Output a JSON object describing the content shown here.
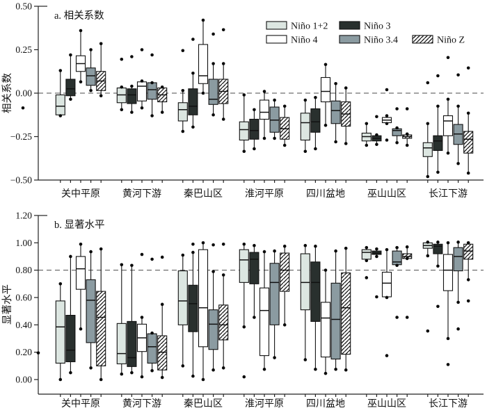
{
  "figure": {
    "legend": [
      {
        "label": "Niño 1+2",
        "style": "nino12",
        "row": 0,
        "col": 0
      },
      {
        "label": "Niño 3",
        "style": "nino3",
        "row": 0,
        "col": 1
      },
      {
        "label": "Niño 4",
        "style": "nino4",
        "row": 1,
        "col": 0
      },
      {
        "label": "Niño 3.4",
        "style": "nino34",
        "row": 1,
        "col": 1
      },
      {
        "label": "Niño Z",
        "style": "ninoZ",
        "row": 1,
        "col": 2
      }
    ],
    "colors": {
      "nino12": "#dce6e1",
      "nino3": "#29302e",
      "nino4": "#ffffff",
      "nino34": "#8b9ba1",
      "ninoZ": "hatch",
      "hatch_line": "#111111",
      "box_stroke": "#111111",
      "dashed_line": "#6e6e6e",
      "axis": "#222222"
    },
    "stray_dots": [
      {
        "panel": 0,
        "x": 33,
        "value": -0.085
      },
      {
        "panel": 1,
        "x": 55,
        "value": 0.195
      }
    ]
  },
  "chart_data": [
    {
      "type": "box",
      "id": "a",
      "title": "a. 相关系数",
      "ylabel": "相关系数",
      "ylim": [
        -0.5,
        0.5
      ],
      "grid": false,
      "legend_position": "top-right",
      "yticks": [
        {
          "v": 0.5,
          "label": "0.50"
        },
        {
          "v": 0.25,
          "label": "0.25"
        },
        {
          "v": 0.0,
          "label": "0.00"
        },
        {
          "v": -0.25,
          "label": "−0.25"
        },
        {
          "v": -0.5,
          "label": "−0.50"
        }
      ],
      "dashed_at": [
        0.0
      ],
      "categories": [
        "关中平原",
        "黄河下游",
        "秦巴山区",
        "淮河平原",
        "四川盆地",
        "巫山山区",
        "长江下游"
      ],
      "series": [
        {
          "name": "Niño 1+2",
          "style": "nino12",
          "boxes": [
            {
              "lo": -0.13,
              "q1": -0.125,
              "med": -0.075,
              "q3": -0.01,
              "hi": 0.13,
              "out": []
            },
            {
              "lo": -0.095,
              "q1": -0.055,
              "med": -0.01,
              "q3": 0.03,
              "hi": 0.035,
              "out": [
                0.195
              ]
            },
            {
              "lo": -0.22,
              "q1": -0.16,
              "med": -0.095,
              "q3": -0.055,
              "hi": 0.015,
              "out": [
                0.245
              ]
            },
            {
              "lo": -0.335,
              "q1": -0.27,
              "med": -0.21,
              "q3": -0.165,
              "hi": -0.01,
              "out": []
            },
            {
              "lo": -0.335,
              "q1": -0.27,
              "med": -0.17,
              "q3": -0.115,
              "hi": -0.04,
              "out": []
            },
            {
              "lo": -0.3,
              "q1": -0.275,
              "med": -0.25,
              "q3": -0.23,
              "hi": -0.175,
              "out": []
            },
            {
              "lo": -0.48,
              "q1": -0.365,
              "med": -0.315,
              "q3": -0.285,
              "hi": -0.175,
              "out": [
                0.06
              ]
            }
          ]
        },
        {
          "name": "Niño 3",
          "style": "nino3",
          "boxes": [
            {
              "lo": -0.035,
              "q1": -0.015,
              "med": 0.025,
              "q3": 0.08,
              "hi": 0.22,
              "out": []
            },
            {
              "lo": -0.11,
              "q1": -0.06,
              "med": -0.01,
              "q3": 0.025,
              "hi": 0.04,
              "out": [
                0.21
              ]
            },
            {
              "lo": -0.195,
              "q1": -0.125,
              "med": -0.075,
              "q3": 0.025,
              "hi": 0.115,
              "out": [
                0.31
              ]
            },
            {
              "lo": -0.32,
              "q1": -0.265,
              "med": -0.215,
              "q3": -0.15,
              "hi": -0.095,
              "out": []
            },
            {
              "lo": -0.32,
              "q1": -0.225,
              "med": -0.165,
              "q3": -0.09,
              "hi": -0.025,
              "out": []
            },
            {
              "lo": -0.295,
              "q1": -0.275,
              "med": -0.26,
              "q3": -0.245,
              "hi": -0.24,
              "out": [
                -0.135
              ]
            },
            {
              "lo": -0.455,
              "q1": -0.33,
              "med": -0.275,
              "q3": -0.245,
              "hi": -0.075,
              "out": [
                0.1
              ]
            }
          ]
        },
        {
          "name": "Niño 4",
          "style": "nino4",
          "boxes": [
            {
              "lo": 0.065,
              "q1": 0.125,
              "med": 0.17,
              "q3": 0.215,
              "hi": 0.36,
              "out": []
            },
            {
              "lo": -0.085,
              "q1": -0.045,
              "med": 0.04,
              "q3": 0.065,
              "hi": 0.07,
              "out": [
                0.25
              ]
            },
            {
              "lo": 0.0,
              "q1": 0.055,
              "med": 0.1,
              "q3": 0.28,
              "hi": 0.42,
              "out": []
            },
            {
              "lo": -0.26,
              "q1": -0.15,
              "med": -0.11,
              "q3": -0.04,
              "hi": 0.01,
              "out": []
            },
            {
              "lo": -0.185,
              "q1": -0.05,
              "med": 0.01,
              "q3": 0.09,
              "hi": 0.165,
              "out": []
            },
            {
              "lo": -0.175,
              "q1": -0.17,
              "med": -0.155,
              "q3": -0.14,
              "hi": -0.13,
              "out": [
                0.02,
                -0.27
              ]
            },
            {
              "lo": -0.345,
              "q1": -0.245,
              "med": -0.16,
              "q3": -0.13,
              "hi": -0.035,
              "out": [
                0.205
              ]
            }
          ]
        },
        {
          "name": "Niño 3.4",
          "style": "nino34",
          "boxes": [
            {
              "lo": 0.015,
              "q1": 0.045,
              "med": 0.1,
              "q3": 0.145,
              "hi": 0.25,
              "out": []
            },
            {
              "lo": -0.13,
              "q1": -0.035,
              "med": 0.02,
              "q3": 0.06,
              "hi": 0.06,
              "out": [
                0.22
              ]
            },
            {
              "lo": -0.125,
              "q1": -0.065,
              "med": -0.035,
              "q3": 0.08,
              "hi": 0.17,
              "out": [
                0.34
              ]
            },
            {
              "lo": -0.26,
              "q1": -0.225,
              "med": -0.155,
              "q3": -0.08,
              "hi": -0.04,
              "out": []
            },
            {
              "lo": -0.28,
              "q1": -0.175,
              "med": -0.1,
              "q3": -0.045,
              "hi": 0.055,
              "out": []
            },
            {
              "lo": -0.285,
              "q1": -0.245,
              "med": -0.215,
              "q3": -0.205,
              "hi": -0.2,
              "out": [
                -0.09
              ]
            },
            {
              "lo": -0.405,
              "q1": -0.295,
              "med": -0.235,
              "q3": -0.18,
              "hi": -0.075,
              "out": [
                0.105
              ]
            }
          ]
        },
        {
          "name": "Niño Z",
          "style": "ninoZ",
          "boxes": [
            {
              "lo": -0.015,
              "q1": 0.015,
              "med": 0.07,
              "q3": 0.125,
              "hi": 0.285,
              "out": []
            },
            {
              "lo": -0.11,
              "q1": -0.05,
              "med": -0.01,
              "q3": 0.03,
              "hi": 0.035,
              "out": []
            },
            {
              "lo": -0.15,
              "q1": -0.06,
              "med": 0.01,
              "q3": 0.08,
              "hi": 0.17,
              "out": [
                0.365
              ]
            },
            {
              "lo": -0.3,
              "q1": -0.265,
              "med": -0.205,
              "q3": -0.14,
              "hi": -0.075,
              "out": []
            },
            {
              "lo": -0.29,
              "q1": -0.19,
              "med": -0.12,
              "q3": -0.05,
              "hi": 0.03,
              "out": []
            },
            {
              "lo": -0.3,
              "q1": -0.26,
              "med": -0.25,
              "q3": -0.24,
              "hi": -0.235,
              "out": [
                -0.09
              ]
            },
            {
              "lo": -0.46,
              "q1": -0.345,
              "med": -0.265,
              "q3": -0.22,
              "hi": -0.115,
              "out": [
                0.145
              ]
            }
          ]
        }
      ]
    },
    {
      "type": "box",
      "id": "b",
      "title": "b. 显著水平",
      "ylabel": "显著水平",
      "ylim": [
        0.0,
        1.2
      ],
      "grid": false,
      "yticks": [
        {
          "v": 1.2,
          "label": "1.20"
        },
        {
          "v": 1.0,
          "label": "1.00"
        },
        {
          "v": 0.8,
          "label": "0.80"
        },
        {
          "v": 0.6,
          "label": "0.60"
        },
        {
          "v": 0.4,
          "label": "0.40"
        },
        {
          "v": 0.2,
          "label": "0.20"
        },
        {
          "v": 0.0,
          "label": "0.00"
        }
      ],
      "dashed_at": [
        0.8
      ],
      "categories": [
        "关中平原",
        "黄河下游",
        "秦巴山区",
        "淮河平原",
        "四川盆地",
        "巫山山区",
        "长江下游"
      ],
      "series": [
        {
          "name": "Niño 1+2",
          "style": "nino12",
          "boxes": [
            {
              "lo": 0.0,
              "q1": 0.12,
              "med": 0.385,
              "q3": 0.575,
              "hi": 0.7,
              "out": []
            },
            {
              "lo": 0.04,
              "q1": 0.115,
              "med": 0.19,
              "q3": 0.41,
              "hi": 0.84,
              "out": []
            },
            {
              "lo": 0.1,
              "q1": 0.4,
              "med": 0.575,
              "q3": 0.795,
              "hi": 0.91,
              "out": []
            },
            {
              "lo": 0.385,
              "q1": 0.71,
              "med": 0.875,
              "q3": 0.95,
              "hi": 0.99,
              "out": [
                0.02
              ]
            },
            {
              "lo": 0.145,
              "q1": 0.51,
              "med": 0.71,
              "q3": 0.92,
              "hi": 0.98,
              "out": []
            },
            {
              "lo": 0.87,
              "q1": 0.88,
              "med": 0.93,
              "q3": 0.95,
              "hi": 0.965,
              "out": [
                0.745
              ]
            },
            {
              "lo": 0.905,
              "q1": 0.96,
              "med": 0.98,
              "q3": 1.0,
              "hi": 1.005,
              "out": [
                0.355
              ]
            }
          ]
        },
        {
          "name": "Niño 3",
          "style": "nino3",
          "boxes": [
            {
              "lo": 0.05,
              "q1": 0.13,
              "med": 0.215,
              "q3": 0.47,
              "hi": 0.9,
              "out": []
            },
            {
              "lo": 0.05,
              "q1": 0.095,
              "med": 0.16,
              "q3": 0.425,
              "hi": 0.835,
              "out": []
            },
            {
              "lo": 0.025,
              "q1": 0.35,
              "med": 0.555,
              "q3": 0.69,
              "hi": 0.93,
              "out": [
                0.99
              ]
            },
            {
              "lo": 0.455,
              "q1": 0.7,
              "med": 0.88,
              "q3": 0.93,
              "hi": 0.98,
              "out": []
            },
            {
              "lo": 0.075,
              "q1": 0.425,
              "med": 0.71,
              "q3": 0.86,
              "hi": 0.975,
              "out": []
            },
            {
              "lo": 0.9,
              "q1": 0.915,
              "med": 0.925,
              "q3": 0.94,
              "hi": 0.955,
              "out": [
                0.605
              ]
            },
            {
              "lo": 0.83,
              "q1": 0.92,
              "med": 0.975,
              "q3": 0.99,
              "hi": 1.005,
              "out": [
                0.535
              ]
            }
          ]
        },
        {
          "name": "Niño 4",
          "style": "nino4",
          "boxes": [
            {
              "lo": 0.37,
              "q1": 0.66,
              "med": 0.81,
              "q3": 0.9,
              "hi": 0.99,
              "out": []
            },
            {
              "lo": 0.02,
              "q1": 0.205,
              "med": 0.305,
              "q3": 0.405,
              "hi": 0.455,
              "out": [
                0.915
              ]
            },
            {
              "lo": 0.0,
              "q1": 0.24,
              "med": 0.525,
              "q3": 0.95,
              "hi": 1.0,
              "out": []
            },
            {
              "lo": 0.075,
              "q1": 0.175,
              "med": 0.505,
              "q3": 0.67,
              "hi": 0.935,
              "out": []
            },
            {
              "lo": 0.045,
              "q1": 0.165,
              "med": 0.45,
              "q3": 0.565,
              "hi": 0.8,
              "out": []
            },
            {
              "lo": 0.6,
              "q1": 0.605,
              "med": 0.705,
              "q3": 0.785,
              "hi": 0.95,
              "out": [
                0.175
              ]
            },
            {
              "lo": 0.3,
              "q1": 0.65,
              "med": 0.8,
              "q3": 0.915,
              "hi": 1.0,
              "out": [
                0.11
              ]
            }
          ]
        },
        {
          "name": "Niño 3.4",
          "style": "nino34",
          "boxes": [
            {
              "lo": 0.085,
              "q1": 0.27,
              "med": 0.58,
              "q3": 0.73,
              "hi": 0.935,
              "out": []
            },
            {
              "lo": 0.065,
              "q1": 0.12,
              "med": 0.24,
              "q3": 0.335,
              "hi": 0.34,
              "out": [
                0.88
              ]
            },
            {
              "lo": 0.07,
              "q1": 0.22,
              "med": 0.405,
              "q3": 0.51,
              "hi": 0.79,
              "out": [
                0.985
              ]
            },
            {
              "lo": 0.16,
              "q1": 0.4,
              "med": 0.71,
              "q3": 0.85,
              "hi": 0.94,
              "out": []
            },
            {
              "lo": 0.075,
              "q1": 0.15,
              "med": 0.44,
              "q3": 0.705,
              "hi": 0.94,
              "out": []
            },
            {
              "lo": 0.835,
              "q1": 0.84,
              "med": 0.86,
              "q3": 0.94,
              "hi": 0.965,
              "out": [
                0.455
              ]
            },
            {
              "lo": 0.565,
              "q1": 0.795,
              "med": 0.9,
              "q3": 0.965,
              "hi": 1.005,
              "out": [
                0.37
              ]
            }
          ]
        },
        {
          "name": "Niño Z",
          "style": "ninoZ",
          "boxes": [
            {
              "lo": 0.0,
              "q1": 0.1,
              "med": 0.455,
              "q3": 0.645,
              "hi": 0.955,
              "out": []
            },
            {
              "lo": 0.015,
              "q1": 0.07,
              "med": 0.2,
              "q3": 0.32,
              "hi": 0.55,
              "out": [
                0.895
              ]
            },
            {
              "lo": 0.085,
              "q1": 0.29,
              "med": 0.4,
              "q3": 0.545,
              "hi": 0.765,
              "out": [
                0.99
              ]
            },
            {
              "lo": 0.4,
              "q1": 0.645,
              "med": 0.8,
              "q3": 0.925,
              "hi": 0.975,
              "out": []
            },
            {
              "lo": 0.07,
              "q1": 0.185,
              "med": 0.525,
              "q3": 0.78,
              "hi": 0.96,
              "out": []
            },
            {
              "lo": 0.885,
              "q1": 0.885,
              "med": 0.9,
              "q3": 0.92,
              "hi": 0.97,
              "out": [
                0.455
              ]
            },
            {
              "lo": 0.73,
              "q1": 0.88,
              "med": 0.94,
              "q3": 0.99,
              "hi": 1.0,
              "out": [
                0.575
              ]
            }
          ]
        }
      ]
    }
  ]
}
